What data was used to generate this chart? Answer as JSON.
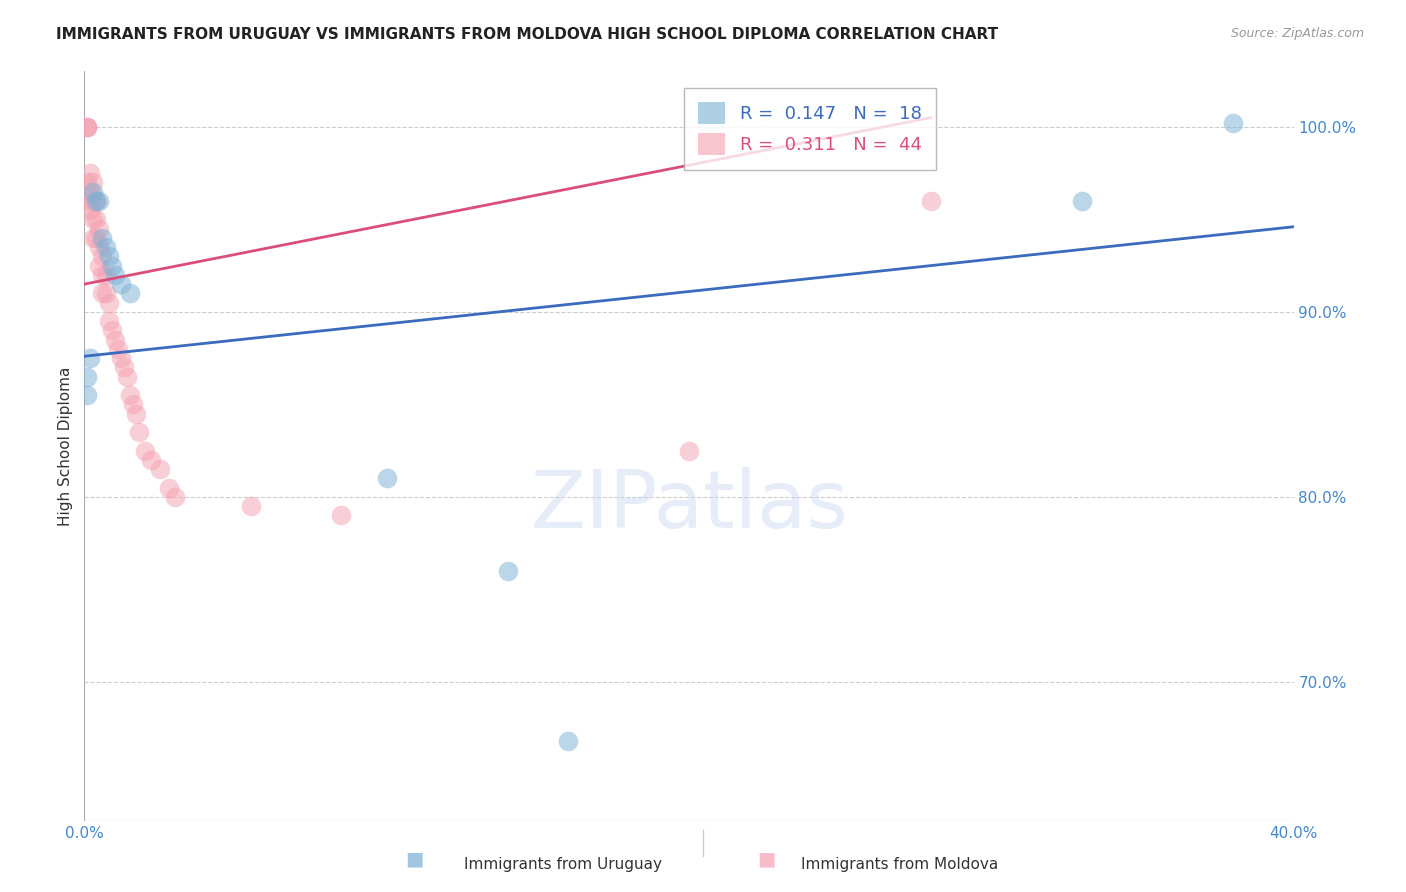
{
  "title": "IMMIGRANTS FROM URUGUAY VS IMMIGRANTS FROM MOLDOVA HIGH SCHOOL DIPLOMA CORRELATION CHART",
  "source": "Source: ZipAtlas.com",
  "ylabel": "High School Diploma",
  "ytick_labels": [
    "100.0%",
    "90.0%",
    "80.0%",
    "70.0%"
  ],
  "ytick_values": [
    1.0,
    0.9,
    0.8,
    0.7
  ],
  "xlim": [
    0.0,
    0.4
  ],
  "ylim": [
    0.625,
    1.03
  ],
  "legend_blue": {
    "R": "0.147",
    "N": "18"
  },
  "legend_pink": {
    "R": "0.311",
    "N": "44"
  },
  "legend_label_blue": "Immigrants from Uruguay",
  "legend_label_pink": "Immigrants from Moldova",
  "blue_color": "#7bafd4",
  "pink_color": "#f4a0b0",
  "line_blue_color": "#3a6bbf",
  "line_pink_color": "#d94f7a",
  "title_color": "#222222",
  "axis_label_color": "#333333",
  "tick_color": "#4488cc",
  "watermark": "ZIPatlas",
  "blue_points_x": [
    0.001,
    0.001,
    0.002,
    0.003,
    0.004,
    0.005,
    0.006,
    0.007,
    0.008,
    0.009,
    0.01,
    0.012,
    0.015,
    0.1,
    0.14,
    0.16,
    0.33,
    0.38
  ],
  "blue_points_y": [
    0.865,
    0.855,
    0.875,
    0.965,
    0.96,
    0.96,
    0.94,
    0.935,
    0.93,
    0.925,
    0.92,
    0.915,
    0.91,
    0.81,
    0.76,
    0.668,
    0.96,
    1.002
  ],
  "pink_points_x": [
    0.001,
    0.001,
    0.001,
    0.001,
    0.001,
    0.002,
    0.002,
    0.002,
    0.003,
    0.003,
    0.003,
    0.003,
    0.004,
    0.004,
    0.004,
    0.005,
    0.005,
    0.005,
    0.006,
    0.006,
    0.006,
    0.007,
    0.007,
    0.008,
    0.008,
    0.009,
    0.01,
    0.011,
    0.012,
    0.013,
    0.014,
    0.015,
    0.016,
    0.017,
    0.018,
    0.02,
    0.022,
    0.025,
    0.028,
    0.03,
    0.055,
    0.085,
    0.2,
    0.28
  ],
  "pink_points_y": [
    1.0,
    1.0,
    1.0,
    0.97,
    0.96,
    0.975,
    0.965,
    0.955,
    0.97,
    0.96,
    0.95,
    0.94,
    0.96,
    0.95,
    0.94,
    0.945,
    0.935,
    0.925,
    0.93,
    0.92,
    0.91,
    0.92,
    0.91,
    0.905,
    0.895,
    0.89,
    0.885,
    0.88,
    0.875,
    0.87,
    0.865,
    0.855,
    0.85,
    0.845,
    0.835,
    0.825,
    0.82,
    0.815,
    0.805,
    0.8,
    0.795,
    0.79,
    0.825,
    0.96
  ],
  "blue_trend_x": [
    0.0,
    0.4
  ],
  "blue_trend_y": [
    0.876,
    0.946
  ],
  "pink_trend_x": [
    0.0,
    0.28
  ],
  "pink_trend_y": [
    0.915,
    1.005
  ]
}
